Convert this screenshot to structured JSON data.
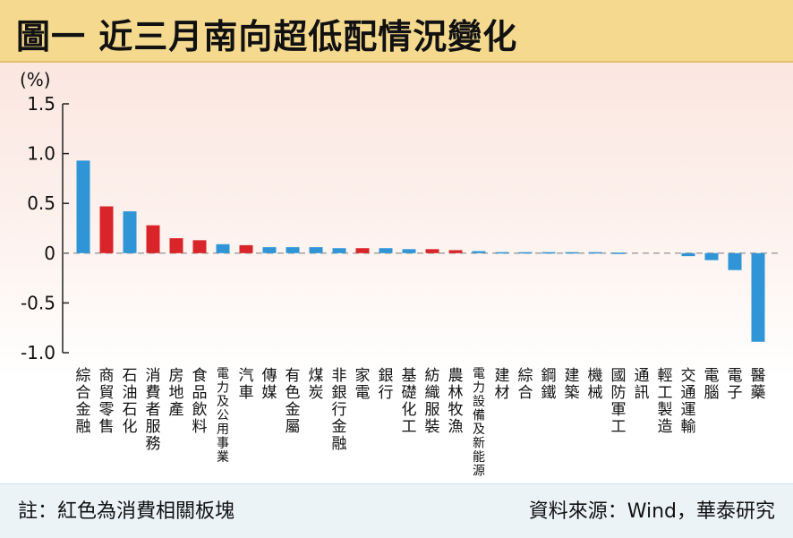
{
  "title": "圖一 近三月南向超低配情況變化",
  "footer": {
    "note": "註：紅色為消費相關板塊",
    "source": "資料來源：Wind，華泰研究"
  },
  "colors": {
    "consumer": "#d9252a",
    "other": "#2f95d6"
  },
  "chart_data": {
    "type": "bar",
    "ylabel": "(%)",
    "ylim": [
      -1.0,
      1.5
    ],
    "yticks": [
      1.5,
      1.0,
      0.5,
      0,
      -0.5,
      -1.0
    ],
    "ytick_labels": [
      "1.5",
      "1.0",
      "0.5",
      "0",
      "-0.5",
      "-1.0"
    ],
    "categories": [
      "綜合金融",
      "商貿零售",
      "石油石化",
      "消費者服務",
      "房地產",
      "食品飲料",
      "電力及公用事業",
      "汽車",
      "傳媒",
      "有色金屬",
      "煤炭",
      "非銀行金融",
      "家電",
      "銀行",
      "基礎化工",
      "紡織服裝",
      "農林牧漁",
      "電力設備及新能源",
      "建材",
      "綜合",
      "鋼鐵",
      "建築",
      "機械",
      "國防軍工",
      "通訊",
      "輕工製造",
      "交通運輸",
      "電腦",
      "電子",
      "醫藥"
    ],
    "values": [
      0.93,
      0.47,
      0.42,
      0.28,
      0.15,
      0.13,
      0.09,
      0.08,
      0.06,
      0.06,
      0.06,
      0.05,
      0.05,
      0.05,
      0.04,
      0.04,
      0.03,
      0.02,
      0.01,
      0.01,
      0.01,
      0.01,
      0.01,
      0.005,
      0.0,
      0.0,
      -0.03,
      -0.07,
      -0.17,
      -0.89
    ],
    "consumer": [
      false,
      true,
      false,
      true,
      true,
      true,
      false,
      true,
      false,
      false,
      false,
      false,
      true,
      false,
      false,
      true,
      true,
      false,
      false,
      false,
      false,
      false,
      false,
      false,
      false,
      false,
      false,
      false,
      false,
      false
    ]
  }
}
